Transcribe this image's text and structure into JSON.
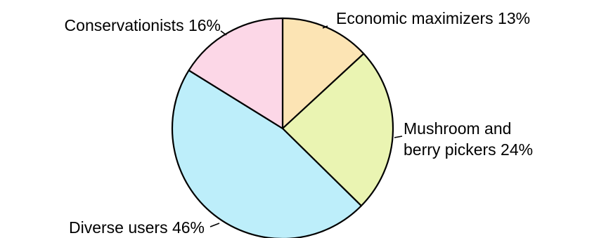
{
  "chart_data": {
    "type": "pie",
    "title": "",
    "slices": [
      {
        "label_lines": [
          "Economic maximizers 13%"
        ],
        "value": 13,
        "color": "#FCE4B4"
      },
      {
        "label_lines": [
          "Mushroom and",
          "berry pickers 24%"
        ],
        "value": 24,
        "color": "#EAF4B2"
      },
      {
        "label_lines": [
          "Diverse users 46%"
        ],
        "value": 46,
        "color": "#BDEEFA"
      },
      {
        "label_lines": [
          "Conservationists 16%"
        ],
        "value": 16,
        "color": "#FCD7E7"
      }
    ],
    "start_angle_deg": 0,
    "direction": "clockwise",
    "legend": "none"
  }
}
